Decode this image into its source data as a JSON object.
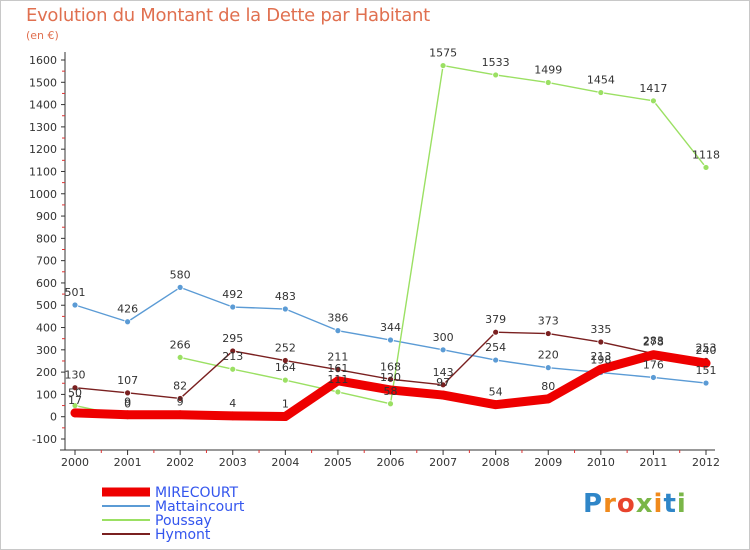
{
  "title": "Evolution du Montant de la Dette par Habitant",
  "subtitle": "(en €)",
  "logo": {
    "text": "Proxiti",
    "letters": [
      "P",
      "r",
      "o",
      "x",
      "i",
      "t",
      "i"
    ],
    "colors": [
      "#2f86c8",
      "#f08a1c",
      "#e8442d",
      "#7ab648",
      "#f08a1c",
      "#2f86c8",
      "#7ab648"
    ]
  },
  "chart_data": {
    "type": "line",
    "x": [
      "2000",
      "2001",
      "2002",
      "2003",
      "2004",
      "2005",
      "2006",
      "2007",
      "2008",
      "2009",
      "2010",
      "2011",
      "2012"
    ],
    "y_ticks": [
      "-100",
      "0",
      "100",
      "200",
      "300",
      "400",
      "500",
      "600",
      "700",
      "800",
      "900",
      "1000",
      "1100",
      "1200",
      "1300",
      "1400",
      "1500",
      "1600"
    ],
    "ylim": [
      -100,
      1600
    ],
    "grid": false,
    "legend_position": "bottom-left",
    "series": [
      {
        "name": "MIRECOURT",
        "color": "#ee0000",
        "text_color": "#3355ee",
        "values": [
          17,
          9,
          9,
          4,
          1,
          161,
          120,
          97,
          54,
          80,
          213,
          278,
          240
        ],
        "labels": [
          "17",
          "9",
          "9",
          "4",
          "1",
          "161",
          "120",
          "97",
          "54",
          "80",
          "213",
          "278",
          "240"
        ]
      },
      {
        "name": "Mattaincourt",
        "color": "#5b9bd5",
        "text_color": "#3355ee",
        "values": [
          501,
          426,
          580,
          492,
          483,
          386,
          344,
          300,
          254,
          220,
          198,
          176,
          151
        ],
        "labels": [
          "501",
          "426",
          "580",
          "492",
          "483",
          "386",
          "344",
          "300",
          "254",
          "220",
          "198",
          "176",
          "151"
        ]
      },
      {
        "name": "Poussay",
        "color": "#9be063",
        "text_color": "#3355ee",
        "values": [
          50,
          0,
          266,
          213,
          164,
          111,
          58,
          1575,
          1533,
          1499,
          1454,
          1417,
          1118
        ],
        "labels": [
          "50",
          "0",
          "266",
          "213",
          "164",
          "111",
          "58",
          "1575",
          "1533",
          "1499",
          "1454",
          "1417",
          "1118"
        ]
      },
      {
        "name": "Hymont",
        "color": "#7a2020",
        "text_color": "#3355ee",
        "values": [
          130,
          107,
          82,
          295,
          252,
          211,
          168,
          143,
          379,
          373,
          335,
          283,
          253
        ],
        "labels": [
          "130",
          "107",
          "82",
          "295",
          "252",
          "211",
          "168",
          "143",
          "379",
          "373",
          "335",
          "283",
          "253"
        ]
      }
    ]
  }
}
